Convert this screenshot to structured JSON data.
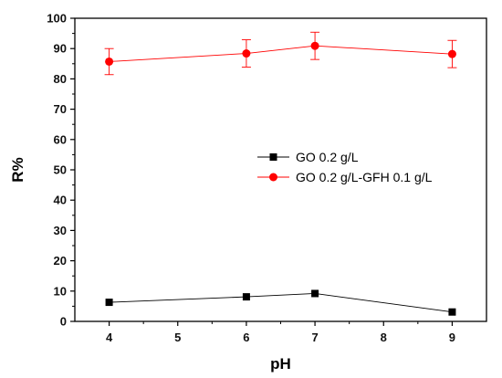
{
  "chart_data": {
    "type": "line",
    "xlabel": "pH",
    "ylabel": "R%",
    "xlim": [
      3.5,
      9.5
    ],
    "ylim": [
      0,
      100
    ],
    "x_ticks": [
      "4",
      "5",
      "6",
      "7",
      "8",
      "9"
    ],
    "y_ticks": [
      "0",
      "10",
      "20",
      "30",
      "40",
      "50",
      "60",
      "70",
      "80",
      "90",
      "100"
    ],
    "grid": false,
    "legend_position": "center-right",
    "series": [
      {
        "name": "GO 0.2 g/L",
        "color": "#000000",
        "marker": "square",
        "x": [
          4,
          6,
          7,
          9
        ],
        "y": [
          6.3,
          8.1,
          9.2,
          3.1
        ]
      },
      {
        "name": "GO 0.2 g/L-GFH 0.1 g/L",
        "color": "#ff0000",
        "marker": "circle",
        "x": [
          4,
          6,
          7,
          9
        ],
        "y": [
          85.7,
          88.4,
          90.9,
          88.2
        ],
        "error": [
          4.3,
          4.5,
          4.5,
          4.5
        ]
      }
    ]
  }
}
